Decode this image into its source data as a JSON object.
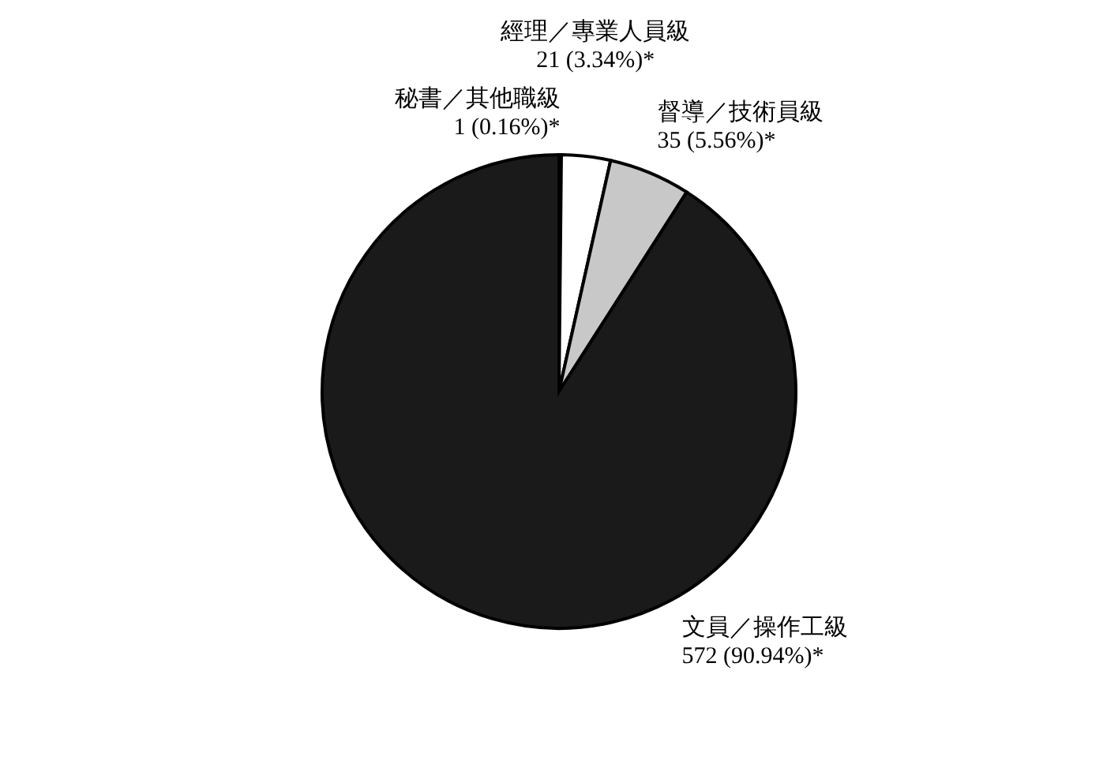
{
  "chart_data": {
    "type": "pie",
    "categories": [
      "秘書／其他職級",
      "經理／專業人員級",
      "督導／技術員級",
      "文員／操作工級"
    ],
    "values": [
      1,
      21,
      35,
      572
    ],
    "colors": [
      "#ffffff",
      "#ffffff",
      "#c8c8c8",
      "#1a1a1a"
    ],
    "value_labels": [
      "1 (0.16%)*",
      "21 (3.34%)*",
      "35 (5.56%)*",
      "572 (90.94%)*"
    ]
  }
}
